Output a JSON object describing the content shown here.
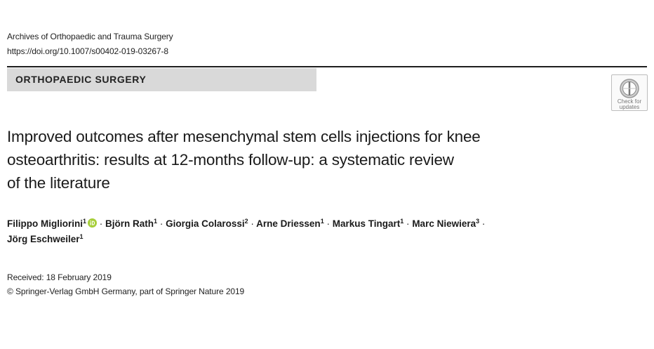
{
  "header": {
    "journal": "Archives of Orthopaedic and Trauma Surgery",
    "doi": "https://doi.org/10.1007/s00402-019-03267-8"
  },
  "section": {
    "label": "ORTHOPAEDIC SURGERY"
  },
  "badge": {
    "icon": "check-for-updates-icon",
    "line1": "Check for",
    "line2": "updates"
  },
  "title": {
    "line1": "Improved outcomes after mesenchymal stem cells injections for knee",
    "line2": "osteoarthritis: results at 12-months follow-up: a systematic review",
    "line3": "of the literature"
  },
  "authors": [
    {
      "name": "Filippo Migliorini",
      "aff": "1",
      "orcid": true
    },
    {
      "name": "Björn Rath",
      "aff": "1"
    },
    {
      "name": "Giorgia Colarossi",
      "aff": "2"
    },
    {
      "name": "Arne Driessen",
      "aff": "1"
    },
    {
      "name": "Markus Tingart",
      "aff": "1"
    },
    {
      "name": "Marc Niewiera",
      "aff": "3"
    },
    {
      "name": "Jörg Eschweiler",
      "aff": "1"
    }
  ],
  "separator": "·",
  "dates": {
    "received": "Received: 18 February 2019"
  },
  "copyright": "© Springer-Verlag GmbH Germany, part of Springer Nature 2019",
  "colors": {
    "orcid": "#a6ce39",
    "section_bar": "#d9d9d9",
    "rule": "#1e1e1e"
  }
}
